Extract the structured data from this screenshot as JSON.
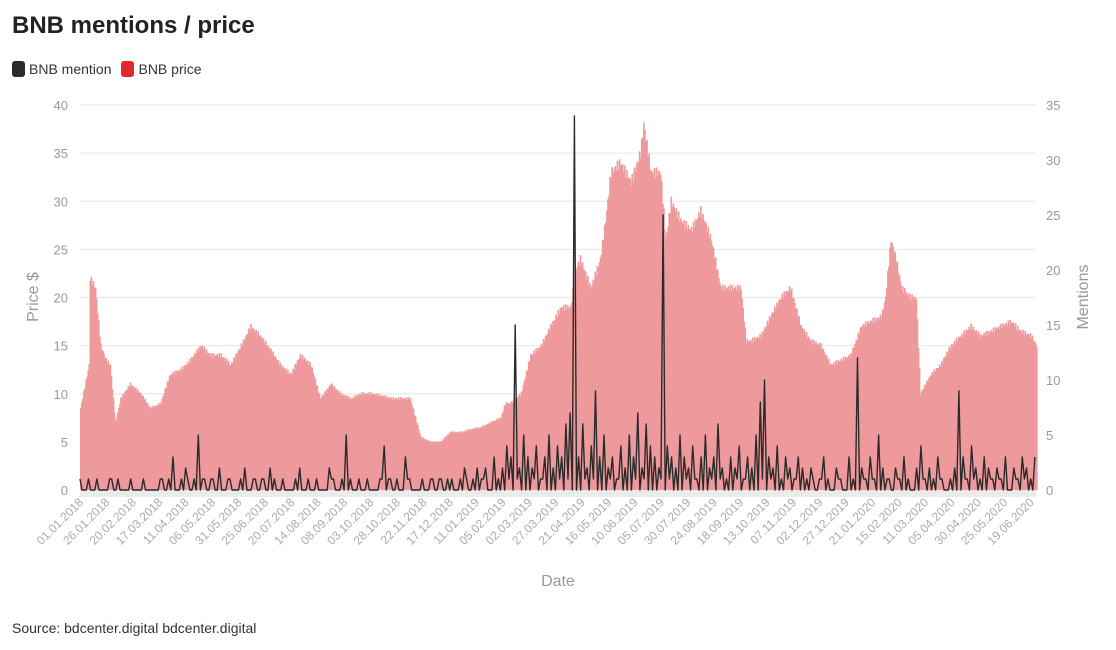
{
  "title": "BNB mentions / price",
  "legend": [
    {
      "label": "BNB mention",
      "color": "#2b2b2b"
    },
    {
      "label": "BNB price",
      "color": "#e0282e"
    }
  ],
  "source": "Source: bdcenter.digital bdcenter.digital",
  "chart_data": {
    "type": "bar+line",
    "xlabel": "Date",
    "ylabel_left": "Price $",
    "ylabel_right": "Mentions",
    "ylim_left": [
      0,
      40
    ],
    "ylim_right": [
      0,
      35
    ],
    "yticks_left": [
      "0",
      "5",
      "10",
      "15",
      "20",
      "25",
      "30",
      "35",
      "40"
    ],
    "yticks_right": [
      "0",
      "5",
      "10",
      "15",
      "20",
      "25",
      "30",
      "35"
    ],
    "start_date": "01.01.2018",
    "x_tick_step_days": 25,
    "x_ticks": [
      "01.01.2018",
      "26.01.2018",
      "20.02.2018",
      "17.03.2018",
      "11.04.2018",
      "06.05.2018",
      "31.05.2018",
      "25.06.2018",
      "20.07.2018",
      "14.08.2018",
      "08.09.2018",
      "03.10.2018",
      "28.10.2018",
      "22.11.2018",
      "17.12.2018",
      "11.01.2019",
      "05.02.2019",
      "02.03.2019",
      "27.03.2019",
      "21.04.2019",
      "16.05.2019",
      "10.06.2019",
      "05.07.2019",
      "30.07.2019",
      "24.08.2019",
      "18.09.2019",
      "13.10.2019",
      "07.11.2019",
      "02.12.2019",
      "27.12.2019",
      "21.01.2020",
      "15.02.2020",
      "11.03.2020",
      "05.04.2020",
      "30.04.2020",
      "25.05.2020",
      "19.06.2020"
    ],
    "total_days": 905,
    "series": [
      {
        "name": "BNB price",
        "axis": "left",
        "color": "#ee9a9c",
        "points_day_value": [
          [
            0,
            8.5
          ],
          [
            8,
            13
          ],
          [
            9,
            22
          ],
          [
            14,
            21
          ],
          [
            19,
            15
          ],
          [
            24,
            13.5
          ],
          [
            28,
            13
          ],
          [
            33,
            7
          ],
          [
            38,
            9.5
          ],
          [
            47,
            11
          ],
          [
            57,
            10
          ],
          [
            66,
            8.5
          ],
          [
            76,
            9
          ],
          [
            80,
            10.5
          ],
          [
            85,
            12
          ],
          [
            95,
            12.5
          ],
          [
            104,
            13.5
          ],
          [
            114,
            15
          ],
          [
            123,
            14
          ],
          [
            133,
            14
          ],
          [
            142,
            13
          ],
          [
            152,
            15
          ],
          [
            161,
            17
          ],
          [
            170,
            16
          ],
          [
            180,
            14.5
          ],
          [
            189,
            13
          ],
          [
            199,
            12
          ],
          [
            208,
            14
          ],
          [
            218,
            13
          ],
          [
            227,
            9.5
          ],
          [
            237,
            11
          ],
          [
            246,
            10
          ],
          [
            256,
            9.5
          ],
          [
            265,
            10
          ],
          [
            275,
            10
          ],
          [
            284,
            9.8
          ],
          [
            294,
            9.5
          ],
          [
            303,
            9.5
          ],
          [
            312,
            9.5
          ],
          [
            322,
            5.5
          ],
          [
            331,
            5
          ],
          [
            341,
            5
          ],
          [
            350,
            6
          ],
          [
            360,
            6
          ],
          [
            369,
            6.3
          ],
          [
            379,
            6.5
          ],
          [
            388,
            7
          ],
          [
            398,
            7.5
          ],
          [
            402,
            9
          ],
          [
            407,
            9
          ],
          [
            417,
            10
          ],
          [
            426,
            14
          ],
          [
            436,
            15
          ],
          [
            445,
            17
          ],
          [
            455,
            19
          ],
          [
            464,
            19
          ],
          [
            469,
            23
          ],
          [
            473,
            24
          ],
          [
            483,
            21
          ],
          [
            492,
            24
          ],
          [
            497,
            28
          ],
          [
            502,
            33
          ],
          [
            511,
            34
          ],
          [
            521,
            32
          ],
          [
            530,
            35
          ],
          [
            533,
            38
          ],
          [
            540,
            33
          ],
          [
            549,
            33
          ],
          [
            554,
            26
          ],
          [
            559,
            30
          ],
          [
            568,
            28
          ],
          [
            578,
            27
          ],
          [
            587,
            29
          ],
          [
            597,
            26
          ],
          [
            606,
            21
          ],
          [
            616,
            21
          ],
          [
            625,
            21
          ],
          [
            630,
            15.5
          ],
          [
            634,
            15.5
          ],
          [
            644,
            16
          ],
          [
            653,
            18
          ],
          [
            663,
            20
          ],
          [
            672,
            21
          ],
          [
            682,
            17
          ],
          [
            691,
            15.5
          ],
          [
            701,
            15
          ],
          [
            710,
            13
          ],
          [
            720,
            13.5
          ],
          [
            729,
            14
          ],
          [
            739,
            17
          ],
          [
            748,
            17.5
          ],
          [
            758,
            18
          ],
          [
            762,
            20
          ],
          [
            767,
            26
          ],
          [
            772,
            24
          ],
          [
            777,
            21
          ],
          [
            786,
            20
          ],
          [
            791,
            20
          ],
          [
            795,
            10
          ],
          [
            805,
            12
          ],
          [
            814,
            13
          ],
          [
            824,
            15
          ],
          [
            833,
            16
          ],
          [
            843,
            17
          ],
          [
            852,
            16
          ],
          [
            862,
            16.5
          ],
          [
            871,
            17
          ],
          [
            881,
            17.5
          ],
          [
            890,
            16.5
          ],
          [
            900,
            16
          ],
          [
            905,
            15
          ]
        ]
      },
      {
        "name": "BNB mention",
        "axis": "right",
        "color": "#2b2b2b",
        "step_days": 4,
        "values": [
          1,
          0,
          1,
          0,
          1,
          0,
          0,
          1,
          0,
          1,
          0,
          0,
          1,
          0,
          0,
          1,
          0,
          0,
          0,
          1,
          0,
          1,
          3,
          0,
          1,
          2,
          0,
          1,
          5,
          1,
          0,
          1,
          0,
          2,
          0,
          1,
          0,
          0,
          1,
          2,
          0,
          1,
          0,
          1,
          0,
          2,
          1,
          0,
          1,
          0,
          0,
          1,
          2,
          0,
          1,
          0,
          1,
          0,
          0,
          2,
          1,
          0,
          1,
          5,
          1,
          0,
          1,
          0,
          1,
          0,
          0,
          1,
          4,
          1,
          0,
          1,
          0,
          3,
          1,
          0,
          0,
          1,
          0,
          1,
          0,
          1,
          0,
          1,
          1,
          0,
          1,
          2,
          0,
          1,
          2,
          1,
          2,
          0,
          3,
          1,
          2,
          4,
          3,
          15,
          2,
          5,
          3,
          2,
          4,
          1,
          3,
          5,
          2,
          4,
          3,
          6,
          7,
          34,
          3,
          6,
          2,
          4,
          9,
          3,
          5,
          2,
          3,
          1,
          4,
          2,
          5,
          3,
          7,
          2,
          6,
          4,
          3,
          2,
          25,
          4,
          3,
          2,
          5,
          3,
          2,
          4,
          1,
          3,
          5,
          2,
          3,
          6,
          2,
          1,
          3,
          2,
          4,
          1,
          3,
          2,
          5,
          8,
          10,
          3,
          2,
          4,
          1,
          3,
          2,
          1,
          3,
          2,
          1,
          2,
          0,
          1,
          3,
          1,
          0,
          2,
          1,
          0,
          3,
          1,
          12,
          2,
          1,
          3,
          1,
          5,
          2,
          1,
          0,
          2,
          1,
          3,
          1,
          0,
          2,
          4,
          1,
          2,
          1,
          3,
          1,
          0,
          1,
          2,
          9,
          3,
          1,
          4,
          2,
          1,
          3,
          2,
          1,
          2,
          1,
          3,
          0,
          2,
          1,
          3,
          2,
          1,
          3
        ]
      }
    ]
  }
}
